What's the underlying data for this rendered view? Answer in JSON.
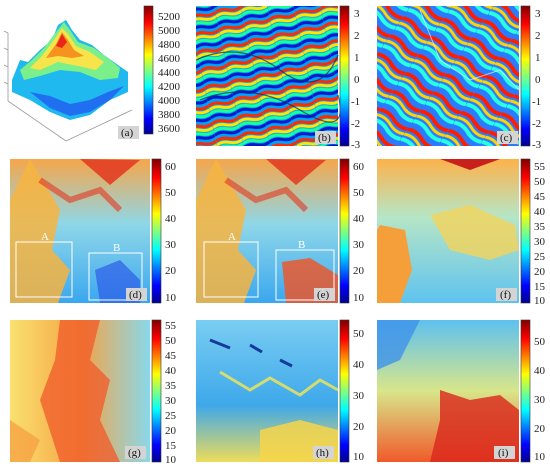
{
  "figure": {
    "panels": [
      {
        "id": "a",
        "label": "(a)",
        "colorbar": {
          "ticks": [
            "5200",
            "5000",
            "4800",
            "4600",
            "4400",
            "4200",
            "4000",
            "3800",
            "3600"
          ]
        }
      },
      {
        "id": "b",
        "label": "(b)",
        "colorbar": {
          "ticks": [
            "3",
            "2",
            "1",
            "0",
            "-1",
            "-2",
            "-3"
          ]
        }
      },
      {
        "id": "c",
        "label": "(c)",
        "colorbar": {
          "ticks": [
            "3",
            "2",
            "1",
            "0",
            "-1",
            "-2",
            "-3"
          ]
        }
      },
      {
        "id": "d",
        "label": "(d)",
        "regions": [
          "A",
          "B"
        ],
        "colorbar": {
          "ticks": [
            "60",
            "50",
            "40",
            "30",
            "20",
            "10"
          ]
        }
      },
      {
        "id": "e",
        "label": "(e)",
        "regions": [
          "A",
          "B"
        ],
        "colorbar": {
          "ticks": [
            "60",
            "50",
            "40",
            "30",
            "20",
            "10"
          ]
        }
      },
      {
        "id": "f",
        "label": "(f)",
        "colorbar": {
          "ticks": [
            "55",
            "50",
            "45",
            "40",
            "35",
            "30",
            "25",
            "20",
            "15",
            "10"
          ]
        }
      },
      {
        "id": "g",
        "label": "(g)",
        "colorbar": {
          "ticks": [
            "55",
            "50",
            "45",
            "40",
            "35",
            "30",
            "25",
            "20",
            "15",
            "10"
          ]
        }
      },
      {
        "id": "h",
        "label": "(h)",
        "colorbar": {
          "ticks": [
            "50",
            "40",
            "30",
            "20",
            "10"
          ]
        }
      },
      {
        "id": "i",
        "label": "(i)",
        "colorbar": {
          "ticks": [
            "50",
            "40",
            "30",
            "20",
            "10"
          ]
        }
      }
    ],
    "colormap": [
      "#00008f",
      "#0000ff",
      "#00ffff",
      "#ffff00",
      "#ff0000",
      "#800000"
    ]
  }
}
